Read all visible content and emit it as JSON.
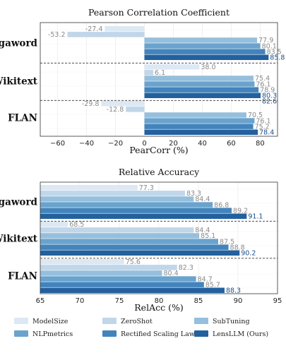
{
  "chart_data": [
    {
      "type": "bar",
      "orientation": "horizontal",
      "title": "Pearson Correlation Coefficient",
      "xlabel": "PearCorr (%)",
      "xlim": [
        -72,
        92
      ],
      "xticks": [
        "−60",
        "−40",
        "−20",
        "0",
        "20",
        "40",
        "60",
        "80"
      ],
      "grid": true,
      "categories": [
        "Gigaword",
        "Wikitext",
        "FLAN"
      ],
      "series": [
        {
          "name": "ModelSize",
          "values": [
            -27.4,
            38.0,
            -29.8
          ],
          "labels": [
            "-27.4",
            "38.0",
            "-29.8"
          ]
        },
        {
          "name": "ZeroShot",
          "values": [
            -53.2,
            6.1,
            -12.8
          ],
          "labels": [
            "-53.2",
            "6.1",
            "-12.8"
          ]
        },
        {
          "name": "SubTuning",
          "values": [
            77.9,
            75.4,
            70.5
          ],
          "labels": [
            "77.9",
            "75.4",
            "70.5"
          ]
        },
        {
          "name": "NLPmetrics",
          "values": [
            80.1,
            76.1,
            76.1
          ],
          "labels": [
            "80.1",
            "76.1",
            "76.1"
          ]
        },
        {
          "name": "Rectified Scaling Law",
          "values": [
            83.5,
            78.9,
            75.2
          ],
          "labels": [
            "83.5",
            "78.9",
            "75.2"
          ]
        },
        {
          "name": "LensLLM (Ours)",
          "values": [
            85.8,
            80.3,
            78.4
          ],
          "labels": [
            "85.8",
            "80.3",
            "78.4"
          ]
        }
      ],
      "extra_label": {
        "group": "Wikitext",
        "text": "82.6"
      }
    },
    {
      "type": "bar",
      "orientation": "horizontal",
      "title": "Relative Accuracy",
      "xlabel": "RelAcc (%)",
      "xlim": [
        65,
        95
      ],
      "xticks": [
        "65",
        "70",
        "75",
        "80",
        "85",
        "90",
        "95"
      ],
      "grid": true,
      "categories": [
        "Gigaword",
        "Wikitext",
        "FLAN"
      ],
      "series": [
        {
          "name": "ModelSize",
          "values": [
            77.3,
            68.5,
            75.6
          ],
          "labels": [
            "77.3",
            "68.5",
            "75.6"
          ]
        },
        {
          "name": "ZeroShot",
          "values": [
            83.3,
            84.4,
            82.3
          ],
          "labels": [
            "83.3",
            "84.4",
            "82.3"
          ]
        },
        {
          "name": "SubTuning",
          "values": [
            84.4,
            85.1,
            80.4
          ],
          "labels": [
            "84.4",
            "85.1",
            "80.4"
          ]
        },
        {
          "name": "NLPmetrics",
          "values": [
            86.8,
            87.5,
            84.7
          ],
          "labels": [
            "86.8",
            "87.5",
            "84.7"
          ]
        },
        {
          "name": "Rectified Scaling Law",
          "values": [
            89.2,
            88.8,
            85.7
          ],
          "labels": [
            "89.2",
            "88.8",
            "85.7"
          ]
        },
        {
          "name": "LensLLM (Ours)",
          "values": [
            91.1,
            90.2,
            88.3
          ],
          "labels": [
            "91.1",
            "90.2",
            "88.3"
          ]
        }
      ]
    }
  ],
  "legend": {
    "placement": "bottom",
    "items": [
      "ModelSize",
      "ZeroShot",
      "SubTuning",
      "NLPmetrics",
      "Rectified Scaling Law",
      "LensLLM (Ours)"
    ]
  },
  "colors": {
    "ModelSize": "#dce8f3",
    "ZeroShot": "#c0d6e9",
    "SubTuning": "#95bfdc",
    "NLPmetrics": "#6aa3cd",
    "Rectified Scaling Law": "#4384bc",
    "LensLLM (Ours)": "#23619e",
    "label_light": "#8a8a8a",
    "label_dark": "#1c4f8a"
  }
}
